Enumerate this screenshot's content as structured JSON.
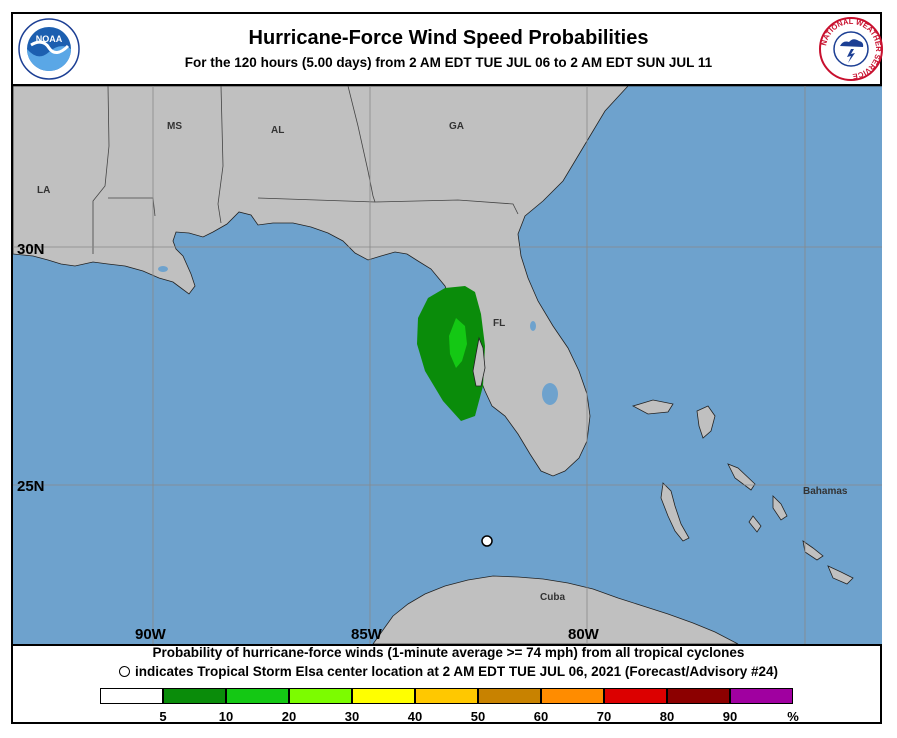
{
  "title": "Hurricane-Force Wind Speed Probabilities",
  "subtitle": "For the 120 hours (5.00 days) from 2 AM EDT TUE JUL 06 to 2 AM EDT SUN JUL 11",
  "logos": {
    "noaa": "NOAA",
    "nws_ring": "NATIONAL WEATHER SERVICE"
  },
  "map": {
    "colors": {
      "ocean": "#6ea2cd",
      "land": "#c0c0c0",
      "grid": "#888888",
      "border": "#444444"
    },
    "state_labels": [
      "MS",
      "AL",
      "GA",
      "LA",
      "FL"
    ],
    "region_labels": [
      "Bahamas",
      "Cuba"
    ],
    "lat_labels": [
      "30N",
      "25N"
    ],
    "lon_labels": [
      "90W",
      "85W",
      "80W"
    ],
    "storm_marker": "Tropical Storm Elsa center",
    "probability_area": {
      "outer_bin": "5-10%",
      "inner_bin": "10-20%"
    }
  },
  "footer": {
    "line1": "Probability of hurricane-force winds (1-minute average >= 74 mph) from all tropical cyclones",
    "line2": "indicates Tropical Storm Elsa center location at 2 AM EDT TUE JUL 06, 2021 (Forecast/Advisory #24)"
  },
  "legend": {
    "colors": [
      "#ffffff",
      "#0a8c0a",
      "#14c814",
      "#7cfc00",
      "#ffff00",
      "#ffc800",
      "#c88200",
      "#ff8c00",
      "#dc0000",
      "#8c0000",
      "#a000a0"
    ],
    "labels": [
      "5",
      "10",
      "20",
      "30",
      "40",
      "50",
      "60",
      "70",
      "80",
      "90",
      "%"
    ]
  }
}
